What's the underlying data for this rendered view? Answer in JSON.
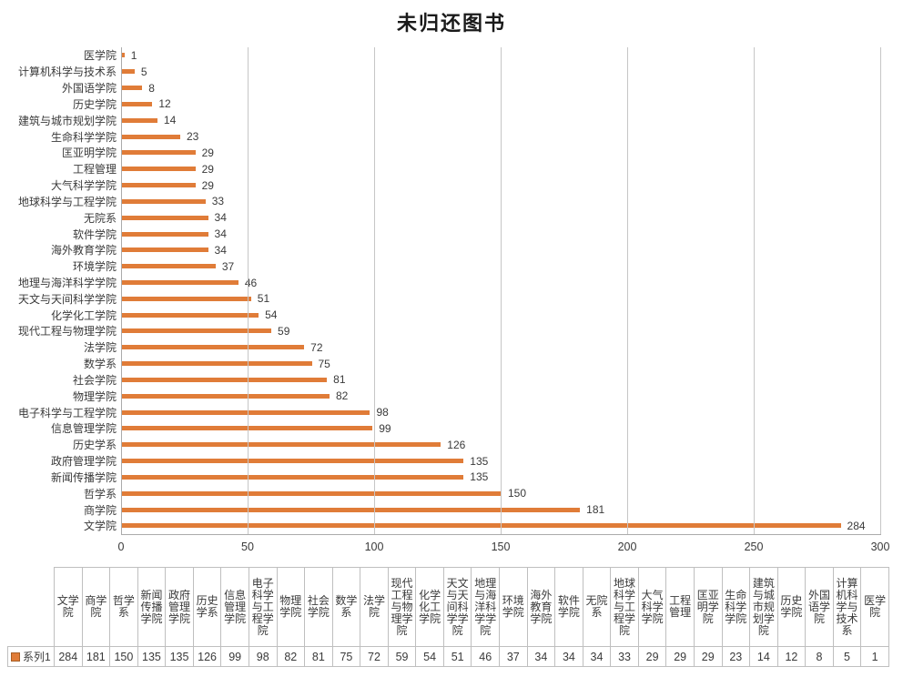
{
  "title": "未归还图书",
  "legend": {
    "series_label": "系列1"
  },
  "colors": {
    "bar": "#e07c38",
    "grid": "#c6c6c6",
    "axis": "#ababab",
    "text": "#3a3a3a",
    "table_border": "#bfbfbf"
  },
  "chart_data": {
    "type": "bar",
    "orientation": "horizontal",
    "title": "未归还图书",
    "series_name": "系列1",
    "categories": [
      "医学院",
      "计算机科学与技术系",
      "外国语学院",
      "历史学院",
      "建筑与城市规划学院",
      "生命科学学院",
      "匡亚明学院",
      "工程管理",
      "大气科学学院",
      "地球科学与工程学院",
      "无院系",
      "软件学院",
      "海外教育学院",
      "环境学院",
      "地理与海洋科学学院",
      "天文与天间科学学院",
      "化学化工学院",
      "现代工程与物理学院",
      "法学院",
      "数学系",
      "社会学院",
      "物理学院",
      "电子科学与工程学院",
      "信息管理学院",
      "历史学系",
      "政府管理学院",
      "新闻传播学院",
      "哲学系",
      "商学院",
      "文学院"
    ],
    "values": [
      1,
      5,
      8,
      12,
      14,
      23,
      29,
      29,
      29,
      33,
      34,
      34,
      34,
      37,
      46,
      51,
      54,
      59,
      72,
      75,
      81,
      82,
      98,
      99,
      126,
      135,
      135,
      150,
      181,
      284
    ],
    "xlabel": "",
    "ylabel": "",
    "xlim": [
      0,
      300
    ],
    "x_ticks": [
      0,
      50,
      100,
      150,
      200,
      250,
      300
    ],
    "grid": true,
    "value_labels": true,
    "legend_position": "data-table-left",
    "data_table": {
      "order": "descending",
      "row_label": "系列1",
      "columns": [
        "文学院",
        "商学院",
        "哲学系",
        "新闻传播学院",
        "政府管理学院",
        "历史学系",
        "信息管理学院",
        "电子科学与工程学院",
        "物理学院",
        "社会学院",
        "数学系",
        "法学院",
        "现代工程与物理学院",
        "化学化工学院",
        "天文与天间科学学院",
        "地理与海洋科学学院",
        "环境学院",
        "海外教育学院",
        "软件学院",
        "无院系",
        "地球科学与工程学院",
        "大气科学学院",
        "工程管理",
        "匡亚明学院",
        "生命科学学院",
        "建筑与城市规划学院",
        "历史学院",
        "外国语学院",
        "计算机科学与技术系",
        "医学院"
      ],
      "row_values": [
        284,
        181,
        150,
        135,
        135,
        126,
        99,
        98,
        82,
        81,
        75,
        72,
        59,
        54,
        51,
        46,
        37,
        34,
        34,
        34,
        33,
        29,
        29,
        29,
        23,
        14,
        12,
        8,
        5,
        1
      ]
    }
  }
}
